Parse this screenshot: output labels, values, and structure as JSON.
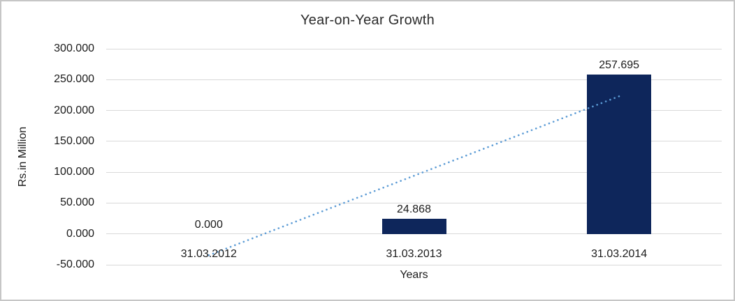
{
  "window": {
    "background_color": "#ffffff",
    "border_color": "#c6c6c6"
  },
  "chart_data": {
    "type": "bar",
    "title": "Year-on-Year Growth",
    "xlabel": "Years",
    "ylabel": "Rs.in Million",
    "categories": [
      "31.03.2012",
      "31.03.2013",
      "31.03.2014"
    ],
    "values": [
      0.0,
      24.868,
      257.695
    ],
    "data_labels": [
      "0.000",
      "24.868",
      "257.695"
    ],
    "ylim": [
      -50,
      300
    ],
    "ytick_step": 50,
    "ytick_labels": [
      "300.000",
      "250.000",
      "200.000",
      "150.000",
      "100.000",
      "50.000",
      "0.000",
      "-50.000"
    ],
    "grid": true,
    "legend_position": "none",
    "bar_color": "#0E265B",
    "gridline_color": "#D9D9D9",
    "text_color": "#1a1a1a",
    "trendline": {
      "kind": "linear",
      "style": "dotted",
      "color": "#5B9BD5",
      "start_value": -34.66,
      "end_value": 223.03
    }
  }
}
